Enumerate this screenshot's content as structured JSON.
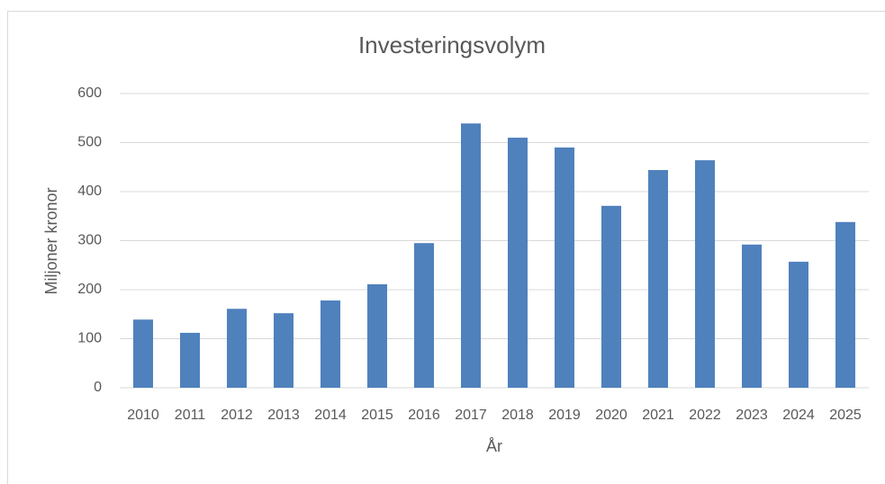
{
  "chart_data": {
    "type": "bar",
    "title": "Investeringsvolym",
    "x_label": "År",
    "y_label": "Miljoner kronor",
    "categories": [
      "2010",
      "2011",
      "2012",
      "2013",
      "2014",
      "2015",
      "2016",
      "2017",
      "2018",
      "2019",
      "2020",
      "2021",
      "2022",
      "2023",
      "2024",
      "2025"
    ],
    "values": [
      139,
      112,
      161,
      152,
      178,
      211,
      295,
      539,
      510,
      490,
      371,
      444,
      464,
      292,
      257,
      338
    ],
    "color": "#4f81bd",
    "ylim": [
      0,
      600
    ],
    "yticks": [
      0,
      100,
      200,
      300,
      400,
      500,
      600
    ],
    "grid": true
  }
}
